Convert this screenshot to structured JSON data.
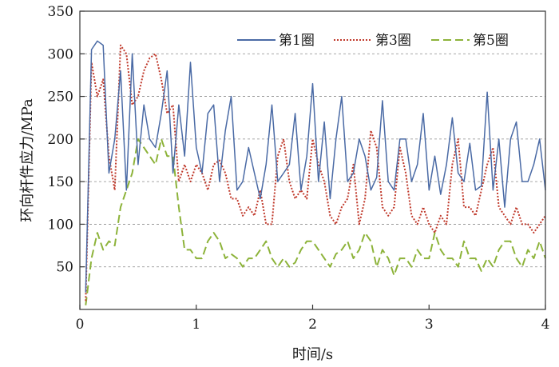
{
  "chart_data": {
    "type": "line",
    "title": "",
    "xlabel": "时间/s",
    "ylabel": "环向杆件应力/MPa",
    "xlim": [
      0,
      4
    ],
    "ylim": [
      0,
      350
    ],
    "xticks": [
      "0",
      "1",
      "2",
      "3",
      "4"
    ],
    "yticks": [
      "50",
      "100",
      "150",
      "200",
      "250",
      "300",
      "350"
    ],
    "grid": "horizontal dashed",
    "legend_position": "top-right",
    "x": [
      0.05,
      0.1,
      0.15,
      0.2,
      0.25,
      0.3,
      0.35,
      0.4,
      0.45,
      0.5,
      0.55,
      0.6,
      0.65,
      0.7,
      0.75,
      0.8,
      0.85,
      0.9,
      0.95,
      1.0,
      1.05,
      1.1,
      1.15,
      1.2,
      1.25,
      1.3,
      1.35,
      1.4,
      1.45,
      1.5,
      1.55,
      1.6,
      1.65,
      1.7,
      1.75,
      1.8,
      1.85,
      1.9,
      1.95,
      2.0,
      2.05,
      2.1,
      2.15,
      2.2,
      2.25,
      2.3,
      2.35,
      2.4,
      2.45,
      2.5,
      2.55,
      2.6,
      2.65,
      2.7,
      2.75,
      2.8,
      2.85,
      2.9,
      2.95,
      3.0,
      3.05,
      3.1,
      3.15,
      3.2,
      3.25,
      3.3,
      3.35,
      3.4,
      3.45,
      3.5,
      3.55,
      3.6,
      3.65,
      3.7,
      3.75,
      3.8,
      3.85,
      3.9,
      3.95,
      4.0
    ],
    "series": [
      {
        "name": "第1圈",
        "color": "#4a6aa5",
        "style": "solid",
        "values": [
          20,
          305,
          315,
          310,
          160,
          200,
          280,
          140,
          300,
          170,
          240,
          200,
          190,
          230,
          280,
          160,
          240,
          180,
          290,
          190,
          160,
          230,
          240,
          150,
          210,
          250,
          140,
          150,
          190,
          160,
          130,
          170,
          240,
          150,
          160,
          170,
          230,
          140,
          180,
          265,
          150,
          220,
          130,
          200,
          250,
          150,
          160,
          200,
          180,
          140,
          155,
          245,
          150,
          140,
          200,
          200,
          150,
          170,
          230,
          140,
          180,
          135,
          170,
          225,
          160,
          150,
          195,
          140,
          145,
          255,
          140,
          200,
          120,
          200,
          220,
          150,
          150,
          170,
          200,
          140
        ]
      },
      {
        "name": "第3圈",
        "color": "#c0392b",
        "style": "dotted",
        "values": [
          10,
          290,
          250,
          270,
          180,
          140,
          310,
          300,
          240,
          250,
          280,
          295,
          300,
          270,
          230,
          240,
          150,
          170,
          150,
          170,
          160,
          140,
          170,
          175,
          160,
          130,
          130,
          110,
          120,
          110,
          140,
          100,
          100,
          180,
          200,
          150,
          130,
          140,
          130,
          200,
          170,
          150,
          110,
          100,
          120,
          130,
          170,
          100,
          130,
          210,
          190,
          120,
          110,
          120,
          190,
          160,
          110,
          100,
          120,
          100,
          90,
          110,
          100,
          170,
          200,
          120,
          120,
          110,
          140,
          170,
          190,
          120,
          110,
          100,
          120,
          100,
          100,
          90,
          100,
          110
        ]
      },
      {
        "name": "第5圈",
        "color": "#8db33a",
        "style": "dashed",
        "values": [
          5,
          60,
          90,
          70,
          80,
          75,
          120,
          140,
          160,
          200,
          190,
          180,
          170,
          200,
          180,
          180,
          120,
          70,
          70,
          60,
          60,
          80,
          90,
          80,
          60,
          65,
          60,
          50,
          60,
          60,
          70,
          80,
          60,
          50,
          60,
          50,
          55,
          70,
          80,
          80,
          70,
          60,
          50,
          65,
          70,
          80,
          60,
          70,
          90,
          80,
          50,
          70,
          60,
          40,
          60,
          60,
          50,
          70,
          60,
          60,
          90,
          70,
          60,
          60,
          50,
          80,
          60,
          60,
          45,
          60,
          50,
          70,
          80,
          80,
          60,
          50,
          70,
          60,
          80,
          60
        ]
      }
    ]
  }
}
